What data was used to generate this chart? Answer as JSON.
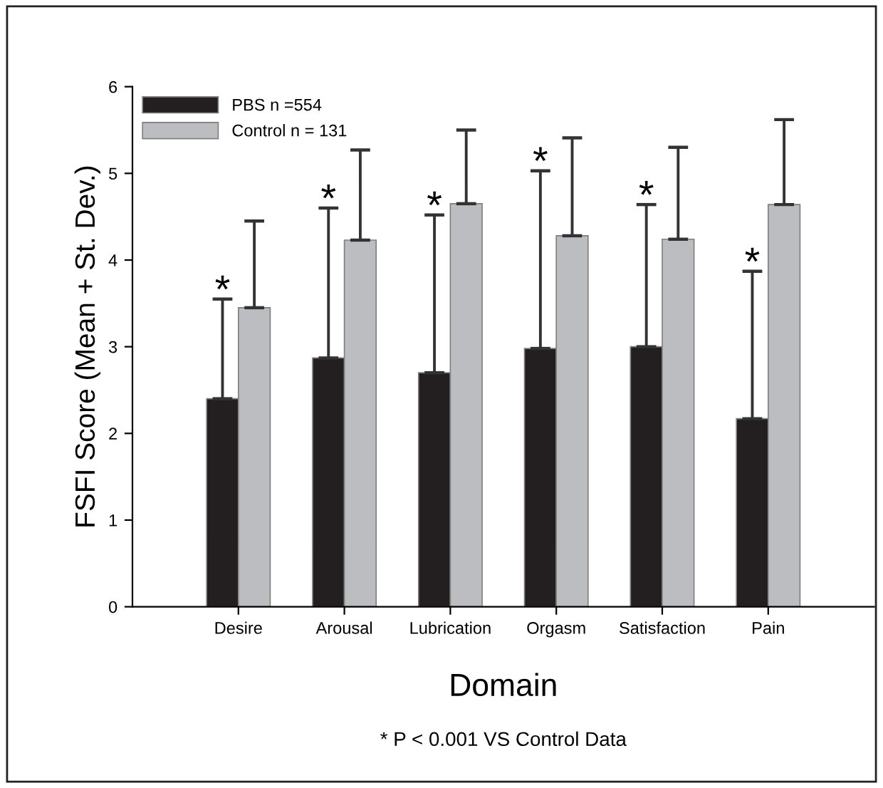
{
  "chart_data": {
    "type": "bar",
    "xlabel": "Domain",
    "ylabel": "FSFI Score (Mean + St. Dev.)",
    "categories": [
      "Desire",
      "Arousal",
      "Lubrication",
      "Orgasm",
      "Satisfaction",
      "Pain"
    ],
    "series": [
      {
        "name": "PBS n =554",
        "color": "#231f20",
        "values": [
          2.4,
          2.87,
          2.7,
          2.98,
          3.0,
          2.17
        ],
        "errors": [
          [
            2.4,
            3.55
          ],
          [
            2.87,
            4.6
          ],
          [
            2.7,
            4.52
          ],
          [
            2.98,
            5.03
          ],
          [
            3.0,
            4.64
          ],
          [
            2.17,
            3.87
          ]
        ]
      },
      {
        "name": "Control n = 131",
        "color": "#bcbdc0",
        "values": [
          3.45,
          4.23,
          4.65,
          4.28,
          4.24,
          4.64
        ],
        "errors": [
          [
            3.45,
            4.45
          ],
          [
            4.23,
            5.27
          ],
          [
            4.65,
            5.5
          ],
          [
            4.28,
            5.41
          ],
          [
            4.24,
            5.3
          ],
          [
            4.64,
            5.62
          ]
        ]
      }
    ],
    "ylim": [
      0,
      6
    ],
    "yticks": [
      0,
      1,
      2,
      3,
      4,
      5,
      6
    ],
    "grid": false,
    "legend": "top left",
    "annotations": [
      {
        "text": "*",
        "x": "Desire",
        "y": 3.55
      },
      {
        "text": "*",
        "x": "Arousal",
        "y": 4.6
      },
      {
        "text": "*",
        "x": "Lubrication",
        "y": 4.52
      },
      {
        "text": "*",
        "x": "Orgasm",
        "y": 5.03
      },
      {
        "text": "*",
        "x": "Satisfaction",
        "y": 4.64
      },
      {
        "text": "*",
        "x": "Pain",
        "y": 3.87
      },
      "* P < 0.001 VS Control Data"
    ]
  }
}
